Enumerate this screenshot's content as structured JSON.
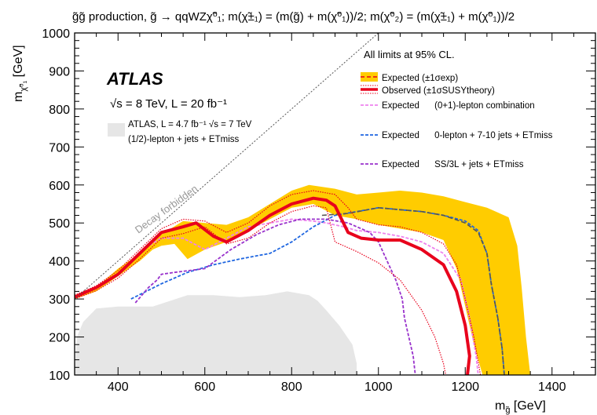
{
  "figure": {
    "title": "g̃g̃ production, g̃ → qqWZχ̃⁰₁; m(χ̃±₁) = (m(g̃) + m(χ̃⁰₁))/2; m(χ̃⁰₂) = (m(χ̃±₁) + m(χ̃⁰₁))/2",
    "brand": "ATLAS",
    "energy_lumi": "√s = 8 TeV, L = 20 fb⁻¹",
    "cl_note": "All limits at 95% CL.",
    "diagonal_label": "Decay forbidden"
  },
  "colors": {
    "band": "#ffcc00",
    "observed": "#e8001c",
    "expected_combo": "#ee82ee",
    "expected_0lep": "#1f66e0",
    "expected_ss3l": "#9932cc",
    "prior": "#e6e6e6",
    "expected_central": "#555555"
  },
  "legend": {
    "expected": "Expected (±1σexp)",
    "observed": "Observed (±1σSUSYtheory)",
    "combo": "Expected      (0+1)-lepton combination",
    "zero_lep": "Expected      0-lepton + 7-10 jets + ETmiss",
    "ss3l": "Expected      SS/3L + jets + ETmiss",
    "prior_line1": "ATLAS, L = 4.7 fb⁻¹ √s = 7 TeV",
    "prior_line2": "(1/2)-lepton + jets + ETmiss"
  },
  "chart_data": {
    "type": "line",
    "title": "g̃g̃ production, g̃ → qqWZχ̃⁰₁; m(χ̃±₁) = (m(g̃) + m(χ̃⁰₁))/2; m(χ̃⁰₂) = (m(χ̃±₁) + m(χ̃⁰₁))/2",
    "xlabel": "m_g̃ [GeV]",
    "ylabel": "m_χ̃⁰₁ [GeV]",
    "xlim": [
      300,
      1500
    ],
    "ylim": [
      100,
      1000
    ],
    "xticks": [
      400,
      600,
      800,
      1000,
      1200,
      1400
    ],
    "yticks": [
      100,
      200,
      300,
      400,
      500,
      600,
      700,
      800,
      900,
      1000
    ],
    "grid": false,
    "series": [
      {
        "name": "Expected (±1σexp)",
        "role": "expected_band",
        "upper": [
          [
            300,
            310
          ],
          [
            350,
            330
          ],
          [
            400,
            380
          ],
          [
            450,
            420
          ],
          [
            500,
            470
          ],
          [
            550,
            505
          ],
          [
            600,
            500
          ],
          [
            650,
            495
          ],
          [
            700,
            515
          ],
          [
            750,
            550
          ],
          [
            800,
            585
          ],
          [
            840,
            600
          ],
          [
            900,
            590
          ],
          [
            950,
            575
          ],
          [
            1000,
            580
          ],
          [
            1050,
            585
          ],
          [
            1100,
            580
          ],
          [
            1150,
            570
          ],
          [
            1200,
            555
          ],
          [
            1250,
            540
          ],
          [
            1300,
            515
          ],
          [
            1320,
            440
          ],
          [
            1330,
            330
          ],
          [
            1340,
            200
          ],
          [
            1350,
            100
          ]
        ],
        "lower": [
          [
            300,
            300
          ],
          [
            350,
            320
          ],
          [
            400,
            360
          ],
          [
            450,
            400
          ],
          [
            480,
            430
          ],
          [
            500,
            440
          ],
          [
            530,
            445
          ],
          [
            560,
            405
          ],
          [
            600,
            430
          ],
          [
            650,
            450
          ],
          [
            700,
            480
          ],
          [
            750,
            510
          ],
          [
            800,
            540
          ],
          [
            850,
            550
          ],
          [
            900,
            520
          ],
          [
            950,
            510
          ],
          [
            1000,
            495
          ],
          [
            1050,
            485
          ],
          [
            1100,
            475
          ],
          [
            1150,
            455
          ],
          [
            1180,
            380
          ],
          [
            1200,
            280
          ],
          [
            1220,
            180
          ],
          [
            1240,
            100
          ]
        ]
      },
      {
        "name": "Expected central",
        "role": "expected_central",
        "points": [
          [
            870,
            520
          ],
          [
            930,
            525
          ],
          [
            1000,
            540
          ],
          [
            1050,
            535
          ],
          [
            1100,
            530
          ],
          [
            1150,
            520
          ],
          [
            1200,
            500
          ],
          [
            1230,
            475
          ],
          [
            1250,
            420
          ],
          [
            1260,
            340
          ],
          [
            1275,
            250
          ],
          [
            1285,
            170
          ],
          [
            1290,
            100
          ]
        ]
      },
      {
        "name": "Observed (±1σSUSYtheory)",
        "role": "observed",
        "points": [
          [
            300,
            305
          ],
          [
            350,
            330
          ],
          [
            400,
            365
          ],
          [
            450,
            420
          ],
          [
            500,
            475
          ],
          [
            550,
            490
          ],
          [
            580,
            500
          ],
          [
            620,
            465
          ],
          [
            650,
            450
          ],
          [
            700,
            480
          ],
          [
            750,
            520
          ],
          [
            800,
            550
          ],
          [
            850,
            565
          ],
          [
            880,
            560
          ],
          [
            900,
            545
          ],
          [
            915,
            510
          ],
          [
            930,
            475
          ],
          [
            960,
            460
          ],
          [
            1000,
            455
          ],
          [
            1050,
            455
          ],
          [
            1100,
            430
          ],
          [
            1150,
            390
          ],
          [
            1180,
            320
          ],
          [
            1200,
            230
          ],
          [
            1210,
            150
          ],
          [
            1205,
            100
          ]
        ]
      },
      {
        "name": "Observed +1σ theory",
        "role": "observed_plus",
        "points": [
          [
            300,
            310
          ],
          [
            350,
            335
          ],
          [
            400,
            375
          ],
          [
            450,
            430
          ],
          [
            500,
            485
          ],
          [
            550,
            510
          ],
          [
            600,
            505
          ],
          [
            650,
            475
          ],
          [
            700,
            500
          ],
          [
            750,
            545
          ],
          [
            800,
            575
          ],
          [
            850,
            585
          ],
          [
            900,
            575
          ],
          [
            930,
            540
          ],
          [
            950,
            510
          ],
          [
            1000,
            495
          ],
          [
            1050,
            490
          ],
          [
            1100,
            475
          ],
          [
            1150,
            445
          ],
          [
            1180,
            390
          ],
          [
            1200,
            300
          ],
          [
            1220,
            200
          ],
          [
            1235,
            100
          ]
        ]
      },
      {
        "name": "Observed -1σ theory",
        "role": "observed_minus",
        "points": [
          [
            300,
            300
          ],
          [
            350,
            322
          ],
          [
            400,
            355
          ],
          [
            450,
            405
          ],
          [
            500,
            460
          ],
          [
            550,
            472
          ],
          [
            600,
            490
          ],
          [
            650,
            445
          ],
          [
            700,
            460
          ],
          [
            750,
            500
          ],
          [
            800,
            530
          ],
          [
            850,
            545
          ],
          [
            880,
            540
          ],
          [
            900,
            450
          ],
          [
            950,
            425
          ],
          [
            1000,
            395
          ],
          [
            1050,
            350
          ],
          [
            1100,
            270
          ],
          [
            1130,
            200
          ],
          [
            1150,
            130
          ],
          [
            1155,
            100
          ]
        ]
      },
      {
        "name": "Expected (0+1)-lepton combination",
        "role": "combo",
        "points": [
          [
            440,
            410
          ],
          [
            470,
            440
          ],
          [
            500,
            460
          ],
          [
            550,
            460
          ],
          [
            600,
            430
          ],
          [
            650,
            460
          ],
          [
            700,
            490
          ],
          [
            750,
            500
          ],
          [
            800,
            510
          ],
          [
            850,
            505
          ],
          [
            880,
            500
          ],
          [
            920,
            490
          ],
          [
            950,
            480
          ],
          [
            1000,
            475
          ],
          [
            1050,
            465
          ],
          [
            1100,
            450
          ],
          [
            1150,
            420
          ],
          [
            1190,
            350
          ],
          [
            1210,
            250
          ],
          [
            1225,
            150
          ],
          [
            1230,
            100
          ]
        ]
      },
      {
        "name": "Expected 0-lepton + 7-10 jets + ETmiss",
        "role": "zero_lep",
        "points": [
          [
            430,
            300
          ],
          [
            500,
            340
          ],
          [
            560,
            370
          ],
          [
            620,
            390
          ],
          [
            680,
            405
          ],
          [
            750,
            420
          ],
          [
            800,
            450
          ],
          [
            850,
            490
          ],
          [
            900,
            520
          ],
          [
            950,
            530
          ],
          [
            1000,
            540
          ],
          [
            1050,
            535
          ],
          [
            1100,
            530
          ],
          [
            1150,
            520
          ],
          [
            1200,
            505
          ],
          [
            1230,
            480
          ],
          [
            1250,
            420
          ],
          [
            1260,
            340
          ],
          [
            1275,
            250
          ],
          [
            1285,
            170
          ],
          [
            1290,
            100
          ]
        ]
      },
      {
        "name": "Expected SS/3L + jets + ETmiss",
        "role": "ss3l",
        "points": [
          [
            440,
            290
          ],
          [
            455,
            310
          ],
          [
            470,
            330
          ],
          [
            490,
            350
          ],
          [
            500,
            365
          ],
          [
            530,
            370
          ],
          [
            600,
            380
          ],
          [
            660,
            430
          ],
          [
            720,
            470
          ],
          [
            770,
            495
          ],
          [
            820,
            510
          ],
          [
            880,
            510
          ],
          [
            930,
            500
          ],
          [
            980,
            475
          ],
          [
            1000,
            450
          ],
          [
            1020,
            400
          ],
          [
            1040,
            350
          ],
          [
            1055,
            300
          ],
          [
            1060,
            250
          ],
          [
            1070,
            200
          ],
          [
            1080,
            150
          ],
          [
            1085,
            100
          ]
        ]
      },
      {
        "name": "ATLAS, L = 4.7 fb⁻¹ √s = 7 TeV (1/2)-lepton + jets + ETmiss",
        "role": "prior",
        "points": [
          [
            300,
            100
          ],
          [
            305,
            200
          ],
          [
            320,
            240
          ],
          [
            350,
            275
          ],
          [
            400,
            280
          ],
          [
            480,
            280
          ],
          [
            520,
            295
          ],
          [
            560,
            310
          ],
          [
            620,
            310
          ],
          [
            680,
            305
          ],
          [
            740,
            310
          ],
          [
            790,
            320
          ],
          [
            840,
            310
          ],
          [
            860,
            295
          ],
          [
            880,
            270
          ],
          [
            910,
            230
          ],
          [
            940,
            180
          ],
          [
            950,
            130
          ],
          [
            950,
            100
          ]
        ]
      }
    ]
  }
}
